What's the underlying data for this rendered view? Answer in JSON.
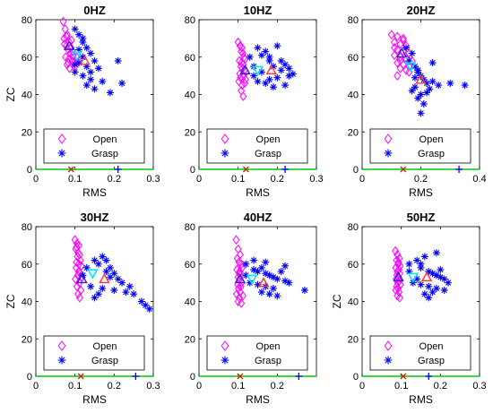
{
  "colors": {
    "open": "#ff00ff",
    "grasp": "#0000ff",
    "open_centroid": "#ff3333",
    "grasp_centroid": "#2222cc",
    "mean_marker": "#00e5ff",
    "zero_line": "#00cc00",
    "open_axis_mark": "#cc2200",
    "grasp_axis_mark": "#0000ff"
  },
  "chart_data": [
    {
      "type": "scatter",
      "title": "0HZ",
      "xlabel": "RMS",
      "ylabel": "ZC",
      "xlim": [
        0,
        0.3
      ],
      "ylim": [
        0,
        80
      ],
      "xticks": [
        "0",
        "0.1",
        "0.2",
        "0.3"
      ],
      "yticks": [
        "0",
        "20",
        "40",
        "60",
        "80"
      ],
      "legend": {
        "placement": "lower-left",
        "entries": [
          "Open",
          "Grasp"
        ]
      },
      "series": [
        {
          "name": "Open",
          "marker": "diamond",
          "x": [
            0.07,
            0.075,
            0.08,
            0.072,
            0.085,
            0.078,
            0.09,
            0.082,
            0.088,
            0.095,
            0.076,
            0.084,
            0.092,
            0.098,
            0.1,
            0.08,
            0.086,
            0.094,
            0.073,
            0.079,
            0.105,
            0.083,
            0.091
          ],
          "y": [
            79,
            75,
            72,
            70,
            68,
            66,
            65,
            64,
            62,
            61,
            60,
            59,
            58,
            57,
            55,
            56,
            54,
            63,
            67,
            71,
            60,
            57,
            69
          ]
        },
        {
          "name": "Grasp",
          "marker": "asterisk",
          "x": [
            0.1,
            0.11,
            0.12,
            0.13,
            0.14,
            0.12,
            0.15,
            0.11,
            0.13,
            0.16,
            0.1,
            0.12,
            0.14,
            0.17,
            0.13,
            0.21,
            0.22,
            0.19,
            0.11,
            0.15,
            0.12,
            0.14,
            0.1
          ],
          "y": [
            75,
            72,
            68,
            65,
            62,
            60,
            58,
            57,
            55,
            54,
            52,
            50,
            48,
            47,
            45,
            58,
            46,
            41,
            64,
            43,
            70,
            52,
            56
          ]
        }
      ],
      "open_centroid": {
        "x": 0.085,
        "y": 66
      },
      "grasp_centroid": {
        "x": 0.125,
        "y": 58
      },
      "mean_marker": {
        "x": 0.105,
        "y": 61
      },
      "x_axis_markers": {
        "open": 0.09,
        "grasp": 0.21
      }
    },
    {
      "type": "scatter",
      "title": "10HZ",
      "xlabel": "RMS",
      "ylabel": "",
      "xlim": [
        0,
        0.3
      ],
      "ylim": [
        0,
        80
      ],
      "xticks": [
        "0",
        "0.1",
        "0.2",
        "0.3"
      ],
      "yticks": [
        "0",
        "20",
        "40",
        "60",
        "80"
      ],
      "legend": {
        "placement": "lower-left",
        "entries": [
          "Open",
          "Grasp"
        ]
      },
      "series": [
        {
          "name": "Open",
          "marker": "diamond",
          "x": [
            0.1,
            0.105,
            0.11,
            0.108,
            0.112,
            0.115,
            0.118,
            0.103,
            0.109,
            0.113,
            0.107,
            0.111,
            0.116,
            0.12,
            0.104,
            0.114,
            0.106,
            0.119,
            0.102,
            0.117,
            0.11,
            0.108,
            0.113
          ],
          "y": [
            68,
            66,
            65,
            63,
            62,
            60,
            59,
            58,
            57,
            56,
            55,
            54,
            53,
            52,
            51,
            50,
            49,
            48,
            47,
            46,
            45,
            42,
            39
          ]
        },
        {
          "name": "Grasp",
          "marker": "asterisk",
          "x": [
            0.13,
            0.15,
            0.17,
            0.18,
            0.2,
            0.22,
            0.21,
            0.19,
            0.16,
            0.14,
            0.23,
            0.24,
            0.2,
            0.18,
            0.15,
            0.17,
            0.22,
            0.19,
            0.21,
            0.16,
            0.23,
            0.14,
            0.18
          ],
          "y": [
            60,
            65,
            63,
            58,
            66,
            56,
            53,
            55,
            52,
            50,
            54,
            51,
            49,
            48,
            47,
            46,
            45,
            44,
            58,
            61,
            50,
            55,
            60
          ]
        }
      ],
      "open_centroid": {
        "x": 0.118,
        "y": 53
      },
      "grasp_centroid": {
        "x": 0.185,
        "y": 53
      },
      "mean_marker": {
        "x": 0.15,
        "y": 53
      },
      "x_axis_markers": {
        "open": 0.12,
        "grasp": 0.22
      }
    },
    {
      "type": "scatter",
      "title": "20HZ",
      "xlabel": "RMS",
      "ylabel": "",
      "xlim": [
        0,
        0.4
      ],
      "ylim": [
        0,
        80
      ],
      "xticks": [
        "0",
        "0.2",
        "0.4"
      ],
      "yticks": [
        "0",
        "20",
        "40",
        "60",
        "80"
      ],
      "legend": {
        "placement": "lower-left",
        "entries": [
          "Open",
          "Grasp"
        ]
      },
      "series": [
        {
          "name": "Open",
          "marker": "diamond",
          "x": [
            0.1,
            0.12,
            0.14,
            0.11,
            0.13,
            0.15,
            0.12,
            0.14,
            0.16,
            0.11,
            0.13,
            0.15,
            0.17,
            0.12,
            0.14,
            0.16,
            0.13,
            0.15,
            0.11,
            0.14,
            0.12,
            0.16,
            0.13
          ],
          "y": [
            72,
            71,
            70,
            68,
            67,
            66,
            64,
            63,
            62,
            61,
            60,
            59,
            58,
            57,
            56,
            55,
            54,
            53,
            65,
            69,
            50,
            52,
            58
          ]
        },
        {
          "name": "Grasp",
          "marker": "asterisk",
          "x": [
            0.15,
            0.17,
            0.16,
            0.18,
            0.19,
            0.2,
            0.21,
            0.22,
            0.18,
            0.17,
            0.2,
            0.23,
            0.26,
            0.24,
            0.19,
            0.21,
            0.3,
            0.35,
            0.22,
            0.18,
            0.2,
            0.19,
            0.24
          ],
          "y": [
            65,
            62,
            58,
            55,
            52,
            50,
            48,
            46,
            44,
            42,
            40,
            43,
            45,
            47,
            38,
            35,
            46,
            45,
            41,
            49,
            30,
            53,
            57
          ]
        }
      ],
      "open_centroid": {
        "x": 0.135,
        "y": 62
      },
      "grasp_centroid": {
        "x": 0.2,
        "y": 48
      },
      "mean_marker": {
        "x": 0.165,
        "y": 55
      },
      "x_axis_markers": {
        "open": 0.14,
        "grasp": 0.33
      }
    },
    {
      "type": "scatter",
      "title": "30HZ",
      "xlabel": "RMS",
      "ylabel": "ZC",
      "xlim": [
        0,
        0.3
      ],
      "ylim": [
        0,
        80
      ],
      "xticks": [
        "0",
        "0.1",
        "0.2",
        "0.3"
      ],
      "yticks": [
        "0",
        "20",
        "40",
        "60",
        "80"
      ],
      "legend": {
        "placement": "lower-left",
        "entries": [
          "Open",
          "Grasp"
        ]
      },
      "series": [
        {
          "name": "Open",
          "marker": "diamond",
          "x": [
            0.1,
            0.105,
            0.11,
            0.102,
            0.108,
            0.112,
            0.106,
            0.114,
            0.104,
            0.11,
            0.116,
            0.103,
            0.109,
            0.113,
            0.107,
            0.118,
            0.101,
            0.111,
            0.105,
            0.115,
            0.108,
            0.112,
            0.104
          ],
          "y": [
            73,
            71,
            70,
            68,
            66,
            65,
            64,
            62,
            61,
            60,
            59,
            58,
            56,
            55,
            54,
            53,
            52,
            50,
            48,
            46,
            44,
            42,
            69
          ]
        },
        {
          "name": "Grasp",
          "marker": "asterisk",
          "x": [
            0.13,
            0.15,
            0.17,
            0.16,
            0.18,
            0.2,
            0.19,
            0.21,
            0.22,
            0.14,
            0.17,
            0.2,
            0.23,
            0.25,
            0.24,
            0.27,
            0.28,
            0.29,
            0.15,
            0.19,
            0.12,
            0.16,
            0.18
          ],
          "y": [
            58,
            62,
            64,
            60,
            56,
            55,
            53,
            52,
            50,
            48,
            47,
            46,
            45,
            44,
            48,
            40,
            38,
            36,
            42,
            58,
            54,
            44,
            62
          ]
        }
      ],
      "open_centroid": {
        "x": 0.118,
        "y": 52
      },
      "grasp_centroid": {
        "x": 0.175,
        "y": 52
      },
      "mean_marker": {
        "x": 0.145,
        "y": 55
      },
      "x_axis_markers": {
        "open": 0.115,
        "grasp": 0.255
      }
    },
    {
      "type": "scatter",
      "title": "40HZ",
      "xlabel": "RMS",
      "ylabel": "",
      "xlim": [
        0,
        0.3
      ],
      "ylim": [
        0,
        80
      ],
      "xticks": [
        "0",
        "0.1",
        "0.2"
      ],
      "yticks": [
        "0",
        "20",
        "40",
        "60",
        "80"
      ],
      "legend": {
        "placement": "lower-left",
        "entries": [
          "Open",
          "Grasp"
        ]
      },
      "series": [
        {
          "name": "Open",
          "marker": "diamond",
          "x": [
            0.095,
            0.1,
            0.105,
            0.098,
            0.102,
            0.108,
            0.11,
            0.097,
            0.103,
            0.106,
            0.1,
            0.104,
            0.109,
            0.099,
            0.107,
            0.101,
            0.105,
            0.096,
            0.112,
            0.103,
            0.1,
            0.108,
            0.104
          ],
          "y": [
            73,
            68,
            65,
            63,
            61,
            60,
            58,
            57,
            55,
            54,
            53,
            52,
            50,
            49,
            48,
            47,
            45,
            44,
            43,
            42,
            40,
            39,
            56
          ]
        },
        {
          "name": "Grasp",
          "marker": "asterisk",
          "x": [
            0.12,
            0.14,
            0.16,
            0.15,
            0.17,
            0.18,
            0.19,
            0.2,
            0.22,
            0.13,
            0.15,
            0.17,
            0.19,
            0.21,
            0.23,
            0.16,
            0.18,
            0.2,
            0.27,
            0.14,
            0.12,
            0.22,
            0.17
          ],
          "y": [
            60,
            62,
            58,
            56,
            55,
            54,
            53,
            52,
            51,
            50,
            49,
            48,
            47,
            56,
            50,
            45,
            44,
            43,
            46,
            57,
            54,
            59,
            61
          ]
        }
      ],
      "open_centroid": {
        "x": 0.105,
        "y": 52
      },
      "grasp_centroid": {
        "x": 0.165,
        "y": 50
      },
      "mean_marker": {
        "x": 0.135,
        "y": 52
      },
      "x_axis_markers": {
        "open": 0.105,
        "grasp": 0.255
      }
    },
    {
      "type": "scatter",
      "title": "50HZ",
      "xlabel": "RMS",
      "ylabel": "ZC",
      "xlim": [
        0,
        0.3
      ],
      "ylim": [
        0,
        80
      ],
      "xticks": [
        "0",
        "0.1",
        "0.2",
        "0.3"
      ],
      "yticks": [
        "0",
        "20",
        "40",
        "60",
        "80"
      ],
      "legend": {
        "placement": "lower-left",
        "entries": [
          "Open",
          "Grasp"
        ]
      },
      "series": [
        {
          "name": "Open",
          "marker": "diamond",
          "x": [
            0.085,
            0.09,
            0.095,
            0.088,
            0.092,
            0.097,
            0.086,
            0.094,
            0.09,
            0.096,
            0.089,
            0.093,
            0.087,
            0.095,
            0.091,
            0.098,
            0.088,
            0.092,
            0.086,
            0.094,
            0.09,
            0.096,
            0.093
          ],
          "y": [
            67,
            65,
            63,
            62,
            60,
            59,
            58,
            57,
            56,
            55,
            54,
            53,
            52,
            51,
            50,
            49,
            48,
            47,
            46,
            45,
            43,
            42,
            61
          ]
        },
        {
          "name": "Grasp",
          "marker": "asterisk",
          "x": [
            0.12,
            0.14,
            0.16,
            0.15,
            0.17,
            0.18,
            0.19,
            0.2,
            0.21,
            0.13,
            0.15,
            0.17,
            0.19,
            0.21,
            0.18,
            0.16,
            0.2,
            0.22,
            0.14,
            0.12,
            0.19,
            0.17,
            0.15
          ],
          "y": [
            60,
            62,
            64,
            58,
            56,
            55,
            54,
            53,
            52,
            50,
            49,
            48,
            47,
            46,
            45,
            44,
            57,
            50,
            52,
            56,
            66,
            42,
            60
          ]
        }
      ],
      "open_centroid": {
        "x": 0.093,
        "y": 53
      },
      "grasp_centroid": {
        "x": 0.165,
        "y": 53
      },
      "mean_marker": {
        "x": 0.13,
        "y": 53
      },
      "x_axis_markers": {
        "open": 0.105,
        "grasp": 0.17
      }
    }
  ]
}
